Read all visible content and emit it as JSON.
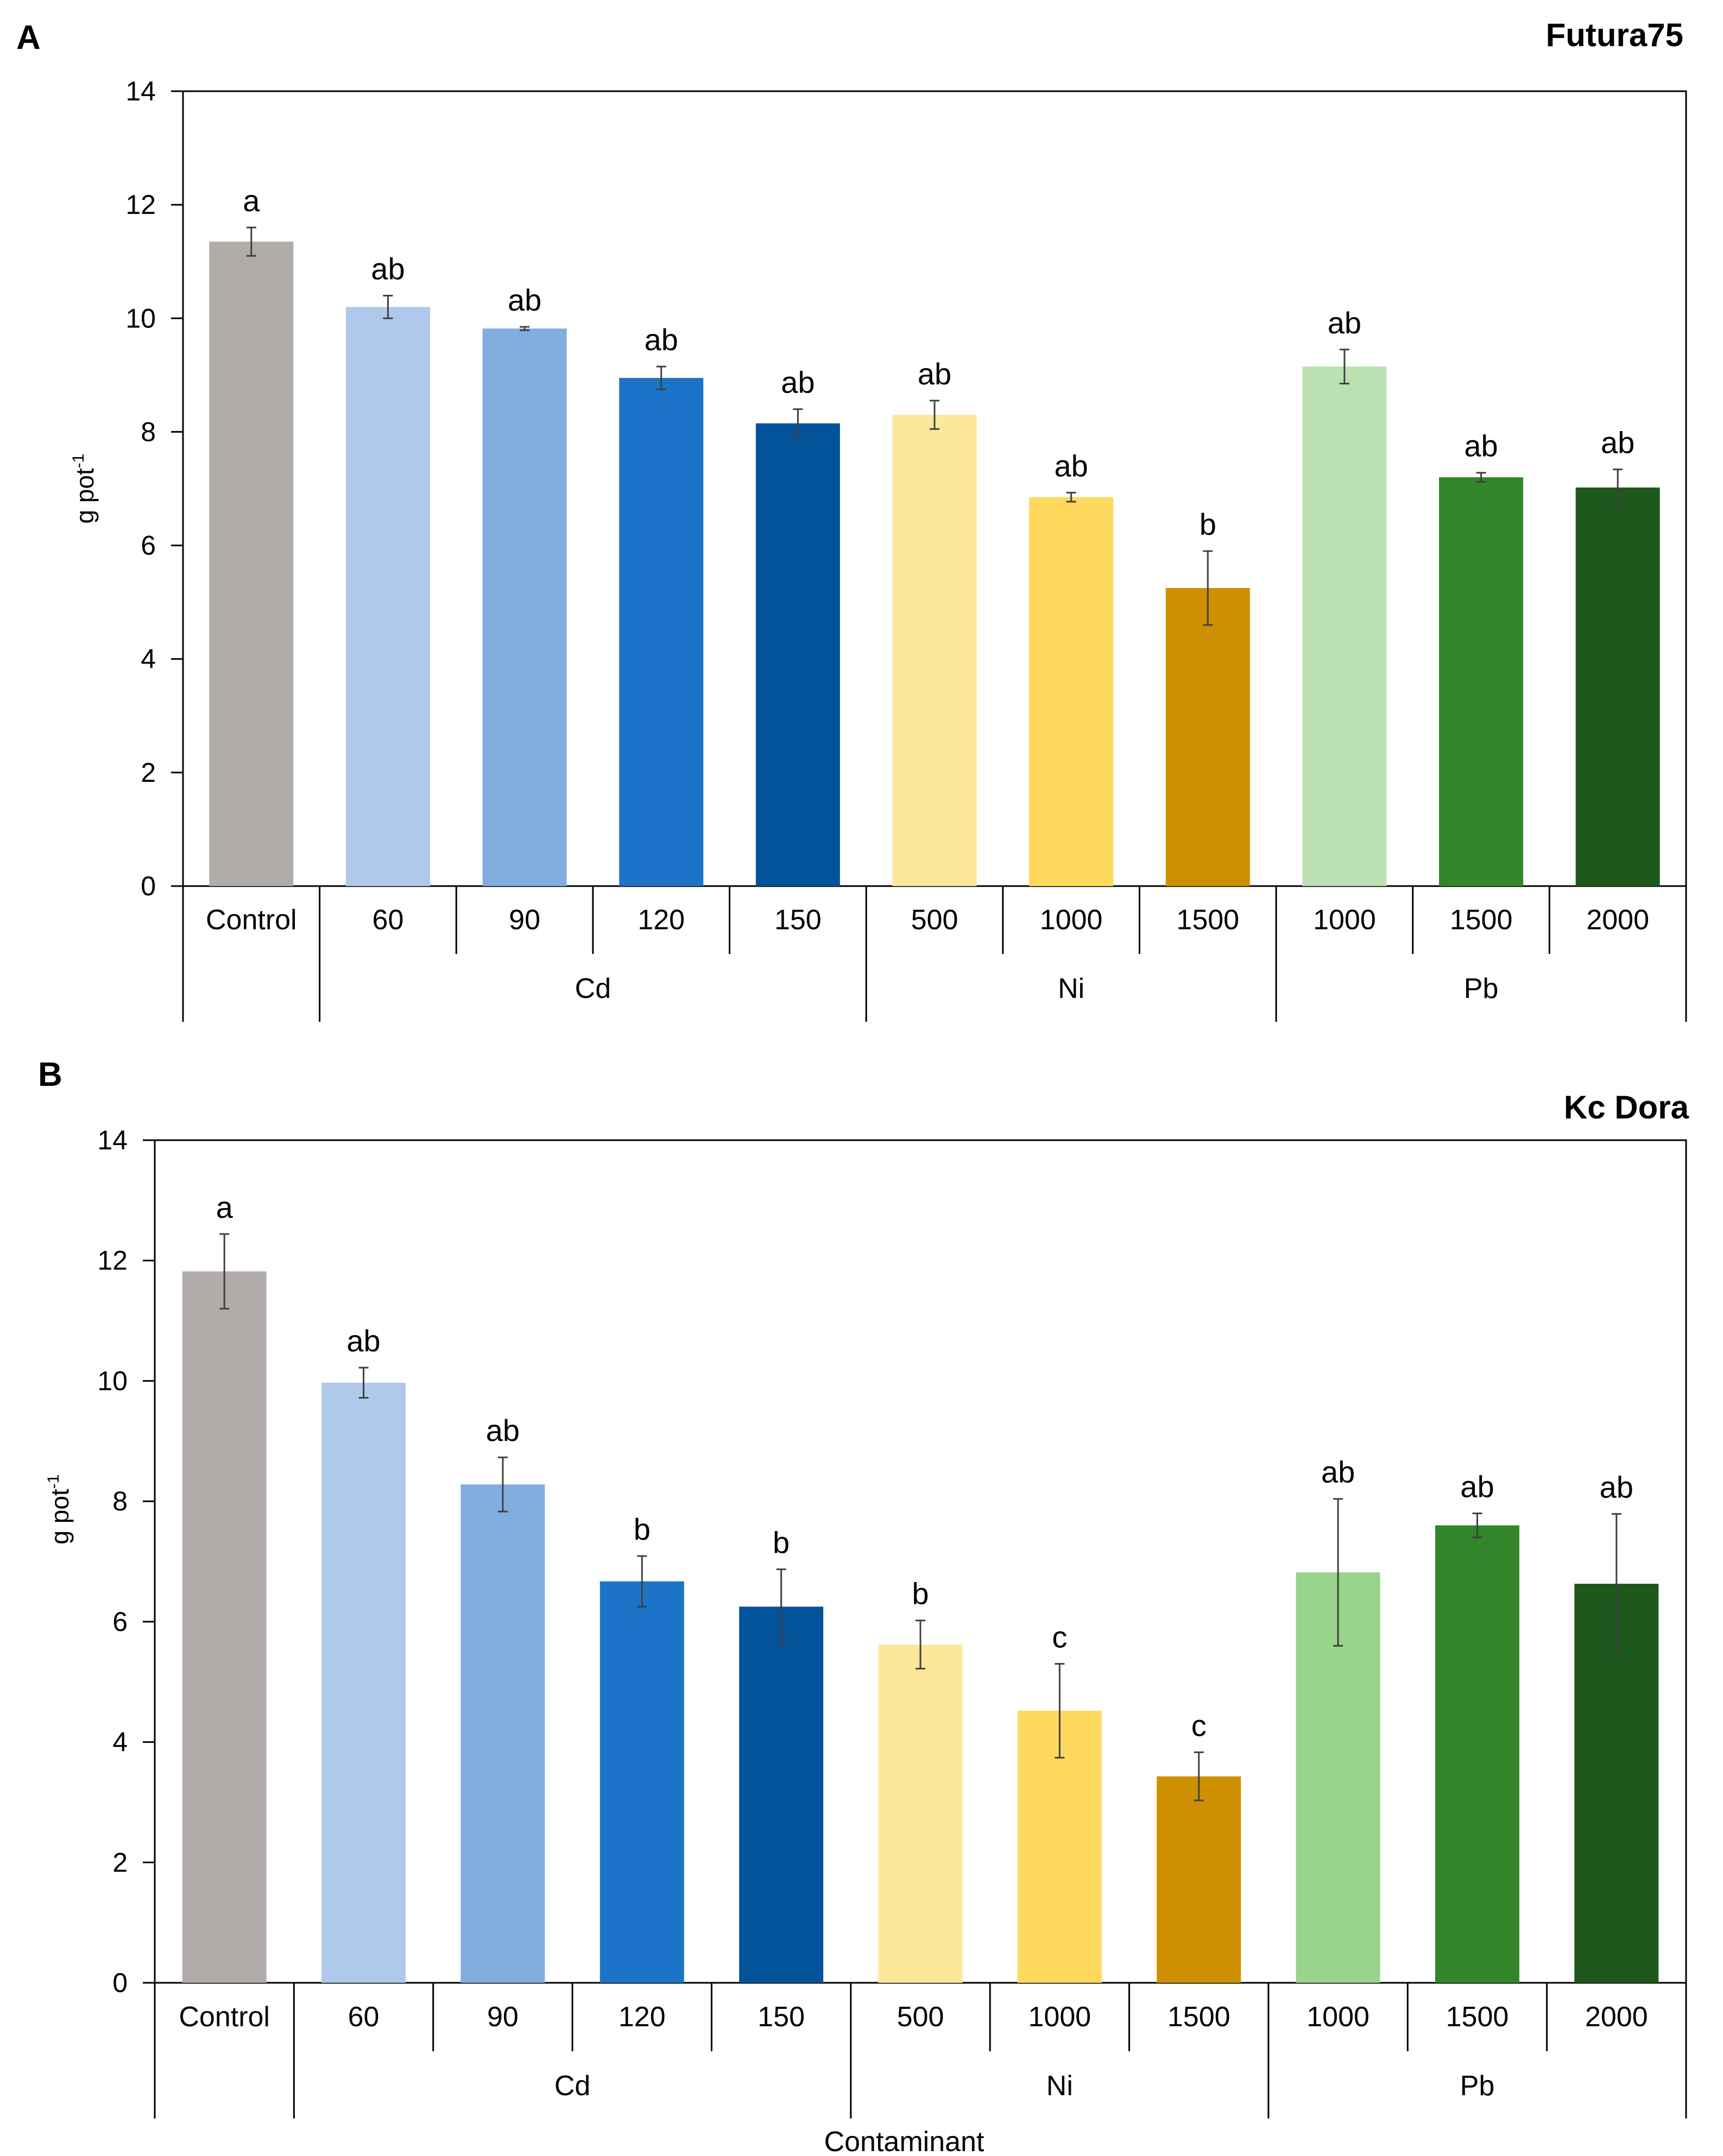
{
  "chart_data": [
    {
      "type": "bar",
      "panel_label": "A",
      "title": "Futura75",
      "ylabel": "g pot",
      "ylabel_superscript": "-1",
      "xlabel": "",
      "ylim": [
        0,
        14
      ],
      "yticks": [
        "0",
        "2",
        "4",
        "6",
        "8",
        "10",
        "12",
        "14"
      ],
      "grid": false,
      "categories": [
        "Control",
        "60",
        "90",
        "120",
        "150",
        "500",
        "1000",
        "1500",
        "1000",
        "1500",
        "2000"
      ],
      "groups": [
        {
          "label": "Cd",
          "start": 1,
          "end": 4
        },
        {
          "label": "Ni",
          "start": 5,
          "end": 7
        },
        {
          "label": "Pb",
          "start": 8,
          "end": 10
        }
      ],
      "values": [
        11.35,
        10.2,
        9.82,
        8.95,
        8.15,
        8.3,
        6.85,
        5.25,
        9.15,
        7.2,
        7.02
      ],
      "errors": [
        0.25,
        0.2,
        0.03,
        0.2,
        0.25,
        0.25,
        0.08,
        0.65,
        0.3,
        0.08,
        0.32
      ],
      "sig_labels": [
        "a",
        "ab",
        "ab",
        "ab",
        "ab",
        "ab",
        "ab",
        "b",
        "ab",
        "ab",
        "ab"
      ],
      "colors": [
        "#b1aca9",
        "#aec9e9",
        "#82addf",
        "#1c74c9",
        "#03539b",
        "#fde79b",
        "#fed95d",
        "#ce9000",
        "#bbe1b3",
        "#328629",
        "#1f581c"
      ]
    },
    {
      "type": "bar",
      "panel_label": "B",
      "title": "Kc Dora",
      "ylabel": "g pot",
      "ylabel_superscript": "-1",
      "xlabel": "Contaminant",
      "ylim": [
        0,
        14
      ],
      "yticks": [
        "0",
        "2",
        "4",
        "6",
        "8",
        "10",
        "12",
        "14"
      ],
      "grid": false,
      "categories": [
        "Control",
        "60",
        "90",
        "120",
        "150",
        "500",
        "1000",
        "1500",
        "1000",
        "1500",
        "2000"
      ],
      "groups": [
        {
          "label": "Cd",
          "start": 1,
          "end": 4
        },
        {
          "label": "Ni",
          "start": 5,
          "end": 7
        },
        {
          "label": "Pb",
          "start": 8,
          "end": 10
        }
      ],
      "values": [
        11.82,
        9.97,
        8.28,
        6.67,
        6.25,
        5.62,
        4.52,
        3.43,
        6.82,
        7.6,
        6.63
      ],
      "errors": [
        0.62,
        0.25,
        0.45,
        0.42,
        0.62,
        0.4,
        0.78,
        0.4,
        1.22,
        0.2,
        1.16
      ],
      "sig_labels": [
        "a",
        "ab",
        "ab",
        "b",
        "b",
        "b",
        "c",
        "c",
        "ab",
        "ab",
        "ab"
      ],
      "colors": [
        "#b1aca9",
        "#aec9e9",
        "#82addf",
        "#1c74c9",
        "#03539b",
        "#fde79b",
        "#fed95d",
        "#ce9000",
        "#98d48b",
        "#328629",
        "#1f581c"
      ]
    }
  ]
}
